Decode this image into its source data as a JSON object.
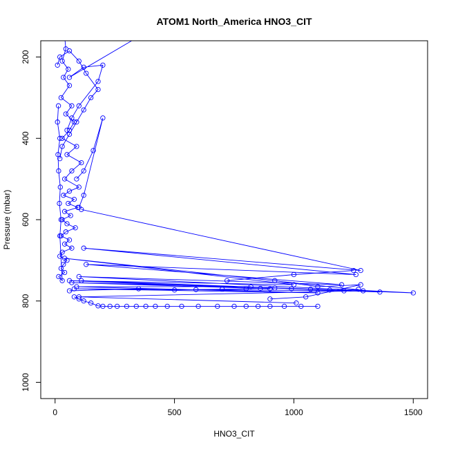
{
  "chart_data": {
    "type": "line",
    "title": "ATOM1 North_America HNO3_CIT",
    "xlabel": "HNO3_CIT",
    "ylabel": "Pressure (mbar)",
    "xlim": [
      -60,
      1560
    ],
    "ylim": [
      1040,
      160
    ],
    "y_reversed": true,
    "x_ticks": [
      0,
      500,
      1000,
      1500
    ],
    "y_ticks": [
      200,
      400,
      600,
      800,
      1000
    ],
    "grid": false,
    "legend": "none",
    "marker": "open-circle",
    "color": "#0000ff",
    "series": [
      {
        "x": [
          40,
          45,
          30,
          55,
          35,
          60,
          25,
          70,
          45,
          80,
          60,
          30,
          90,
          50,
          110,
          70,
          40,
          100,
          60,
          35,
          80,
          55,
          95,
          40,
          65,
          30,
          50,
          85,
          45,
          25,
          60,
          40,
          70,
          30,
          20,
          50,
          35,
          25,
          40,
          15,
          30,
          20,
          25,
          18,
          22,
          15,
          12,
          20,
          10,
          14
        ],
        "y": [
          150,
          180,
          210,
          230,
          250,
          270,
          300,
          320,
          340,
          360,
          380,
          400,
          420,
          440,
          460,
          480,
          500,
          520,
          530,
          540,
          550,
          560,
          570,
          580,
          590,
          600,
          610,
          620,
          630,
          640,
          650,
          660,
          670,
          680,
          690,
          700,
          710,
          720,
          730,
          740,
          750,
          640,
          600,
          560,
          520,
          480,
          440,
          400,
          360,
          320
        ]
      },
      {
        "x": [
          10,
          20,
          60,
          100,
          130,
          180,
          150,
          120,
          90,
          60,
          30,
          20
        ],
        "y": [
          220,
          200,
          185,
          210,
          240,
          280,
          300,
          330,
          360,
          390,
          420,
          450
        ]
      },
      {
        "x": [
          350,
          60,
          120,
          200,
          180,
          100,
          70,
          50
        ],
        "y": [
          150,
          250,
          225,
          220,
          260,
          320,
          350,
          380
        ]
      },
      {
        "x": [
          100,
          120,
          200,
          160,
          120,
          90
        ],
        "y": [
          570,
          540,
          350,
          430,
          480,
          500
        ]
      },
      {
        "x": [
          110,
          1280,
          120,
          1260,
          130,
          1200,
          100,
          1500,
          110,
          1360,
          40,
          1000,
          60,
          900,
          70,
          820,
          90,
          1100,
          80,
          1290,
          100,
          1010
        ],
        "y": [
          575,
          725,
          670,
          735,
          710,
          760,
          740,
          780,
          750,
          778,
          695,
          760,
          750,
          770,
          755,
          765,
          765,
          780,
          770,
          775,
          790,
          805
        ]
      },
      {
        "x": [
          60,
          350,
          500,
          590,
          700,
          800,
          860,
          920,
          990,
          1070,
          1150,
          1210,
          1270
        ],
        "y": [
          775,
          770,
          773,
          772,
          771,
          770,
          769,
          768,
          770,
          771,
          773,
          775,
          771
        ]
      },
      {
        "x": [
          80,
          100,
          120,
          150,
          180,
          200,
          230,
          260,
          300,
          340,
          380,
          420,
          470,
          530,
          600,
          680,
          750,
          800,
          850,
          900,
          960,
          1030,
          1100
        ],
        "y": [
          790,
          795,
          800,
          805,
          812,
          813,
          813,
          813,
          813,
          813,
          813,
          813,
          813,
          813,
          813,
          813,
          813,
          813,
          813,
          813,
          813,
          813,
          813
        ]
      },
      {
        "x": [
          720,
          1000,
          1250
        ],
        "y": [
          750,
          735,
          725
        ]
      },
      {
        "x": [
          920,
          1100,
          1280,
          1050,
          900
        ],
        "y": [
          750,
          765,
          760,
          790,
          795
        ]
      }
    ]
  }
}
